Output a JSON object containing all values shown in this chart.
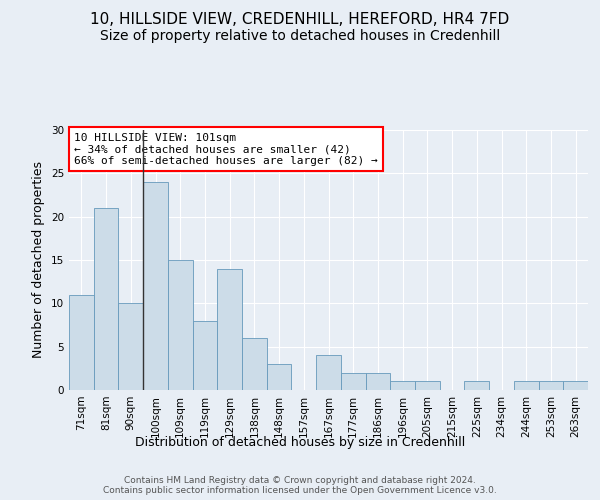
{
  "title_line1": "10, HILLSIDE VIEW, CREDENHILL, HEREFORD, HR4 7FD",
  "title_line2": "Size of property relative to detached houses in Credenhill",
  "xlabel": "Distribution of detached houses by size in Credenhill",
  "ylabel": "Number of detached properties",
  "categories": [
    "71sqm",
    "81sqm",
    "90sqm",
    "100sqm",
    "109sqm",
    "119sqm",
    "129sqm",
    "138sqm",
    "148sqm",
    "157sqm",
    "167sqm",
    "177sqm",
    "186sqm",
    "196sqm",
    "205sqm",
    "215sqm",
    "225sqm",
    "234sqm",
    "244sqm",
    "253sqm",
    "263sqm"
  ],
  "values": [
    11,
    21,
    10,
    24,
    15,
    8,
    14,
    6,
    3,
    0,
    4,
    2,
    2,
    1,
    1,
    0,
    1,
    0,
    1,
    1,
    1
  ],
  "bar_color": "#ccdce8",
  "bar_edge_color": "#6699bb",
  "highlight_index": 3,
  "highlight_line_color": "#333333",
  "annotation_text": "10 HILLSIDE VIEW: 101sqm\n← 34% of detached houses are smaller (42)\n66% of semi-detached houses are larger (82) →",
  "annotation_box_color": "white",
  "annotation_box_edge_color": "red",
  "ylim": [
    0,
    30
  ],
  "yticks": [
    0,
    5,
    10,
    15,
    20,
    25,
    30
  ],
  "background_color": "#e8eef5",
  "footer_text": "Contains HM Land Registry data © Crown copyright and database right 2024.\nContains public sector information licensed under the Open Government Licence v3.0.",
  "title_fontsize": 11,
  "subtitle_fontsize": 10,
  "axis_label_fontsize": 9,
  "tick_fontsize": 7.5,
  "annotation_fontsize": 8,
  "footer_fontsize": 6.5
}
